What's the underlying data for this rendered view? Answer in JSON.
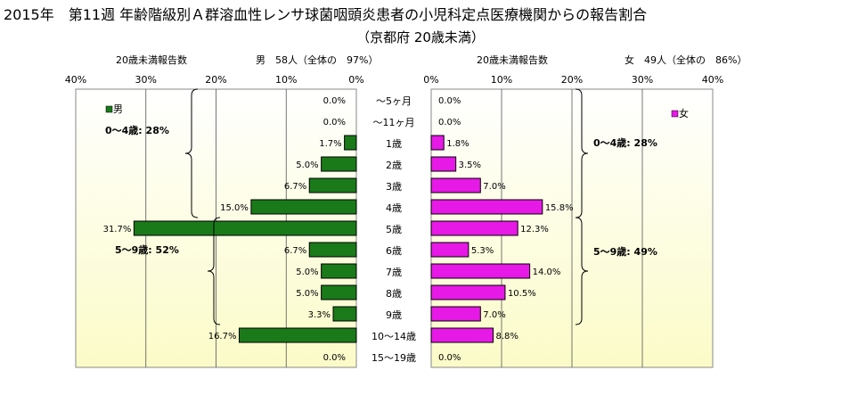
{
  "title": "2015年　第11週 年齢階級別Ａ群溶血性レンサ球菌咽頭炎患者の小児科定点医療機関からの報告割合",
  "subtitle": "（京都府 20歳未満）",
  "colors": {
    "male": "#1a7a1a",
    "female": "#e619e6",
    "plot_bg_top": "#ffffff",
    "plot_bg_bottom": "#fbfbc8"
  },
  "chart_data": [
    {
      "type": "bar",
      "orientation": "horizontal",
      "direction": "reversed",
      "axis_title": "20歳未満報告数",
      "header": "男　58人（全体の　97%）",
      "legend": "男",
      "xlim": [
        0,
        40
      ],
      "ticks": [
        "40%",
        "30%",
        "20%",
        "10%",
        "0%"
      ],
      "categories": [
        "～5ヶ月",
        "～11ヶ月",
        "1歳",
        "2歳",
        "3歳",
        "4歳",
        "5歳",
        "6歳",
        "7歳",
        "8歳",
        "9歳",
        "10～14歳",
        "15～19歳"
      ],
      "values": [
        0.0,
        0.0,
        1.7,
        5.0,
        6.7,
        15.0,
        31.7,
        6.7,
        5.0,
        5.0,
        3.3,
        16.7,
        0.0
      ],
      "labels": [
        "0.0%",
        "0.0%",
        "1.7%",
        "5.0%",
        "6.7%",
        "15.0%",
        "31.7%",
        "6.7%",
        "5.0%",
        "5.0%",
        "3.3%",
        "16.7%",
        "0.0%"
      ],
      "groups": [
        "0～4歳: 28%",
        "5～9歳: 52%"
      ]
    },
    {
      "type": "bar",
      "orientation": "horizontal",
      "axis_title": "20歳未満報告数",
      "header": "女　49人（全体の　86%）",
      "legend": "女",
      "xlim": [
        0,
        40
      ],
      "ticks": [
        "0%",
        "10%",
        "20%",
        "30%",
        "40%"
      ],
      "categories": [
        "～5ヶ月",
        "～11ヶ月",
        "1歳",
        "2歳",
        "3歳",
        "4歳",
        "5歳",
        "6歳",
        "7歳",
        "8歳",
        "9歳",
        "10～14歳",
        "15～19歳"
      ],
      "values": [
        0.0,
        0.0,
        1.8,
        3.5,
        7.0,
        15.8,
        12.3,
        5.3,
        14.0,
        10.5,
        7.0,
        8.8,
        0.0
      ],
      "labels": [
        "0.0%",
        "0.0%",
        "1.8%",
        "3.5%",
        "7.0%",
        "15.8%",
        "12.3%",
        "5.3%",
        "14.0%",
        "10.5%",
        "7.0%",
        "8.8%",
        "0.0%"
      ],
      "groups": [
        "0～4歳: 28%",
        "5～9歳: 49%"
      ]
    }
  ]
}
